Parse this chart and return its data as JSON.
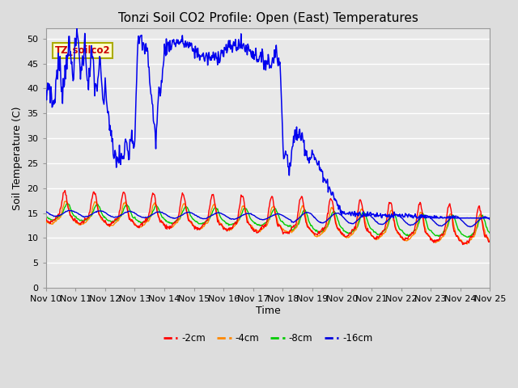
{
  "title": "Tonzi Soil CO2 Profile: Open (East) Temperatures",
  "xlabel": "Time",
  "ylabel": "Soil Temperature (C)",
  "ylim": [
    0,
    52
  ],
  "yticks": [
    0,
    5,
    10,
    15,
    20,
    25,
    30,
    35,
    40,
    45,
    50
  ],
  "legend_labels": [
    "-2cm",
    "-4cm",
    "-8cm",
    "-16cm"
  ],
  "legend_colors": [
    "#ff0000",
    "#ff8800",
    "#00cc00",
    "#0000dd"
  ],
  "annotation_label": "TZ_soilco2",
  "annotation_color": "#cc0000",
  "annotation_bg": "#ffffcc",
  "annotation_border": "#aaaa00",
  "background_color": "#dddddd",
  "plot_bg_color": "#e8e8e8",
  "grid_color": "#ffffff",
  "title_fontsize": 11,
  "axis_label_fontsize": 9,
  "tick_label_fontsize": 8,
  "days": [
    "Nov 10",
    "Nov 11",
    "Nov 12",
    "Nov 13",
    "Nov 14",
    "Nov 15",
    "Nov 16",
    "Nov 17",
    "Nov 18",
    "Nov 19",
    "Nov 20",
    "Nov 21",
    "Nov 22",
    "Nov 23",
    "Nov 24",
    "Nov 25"
  ]
}
